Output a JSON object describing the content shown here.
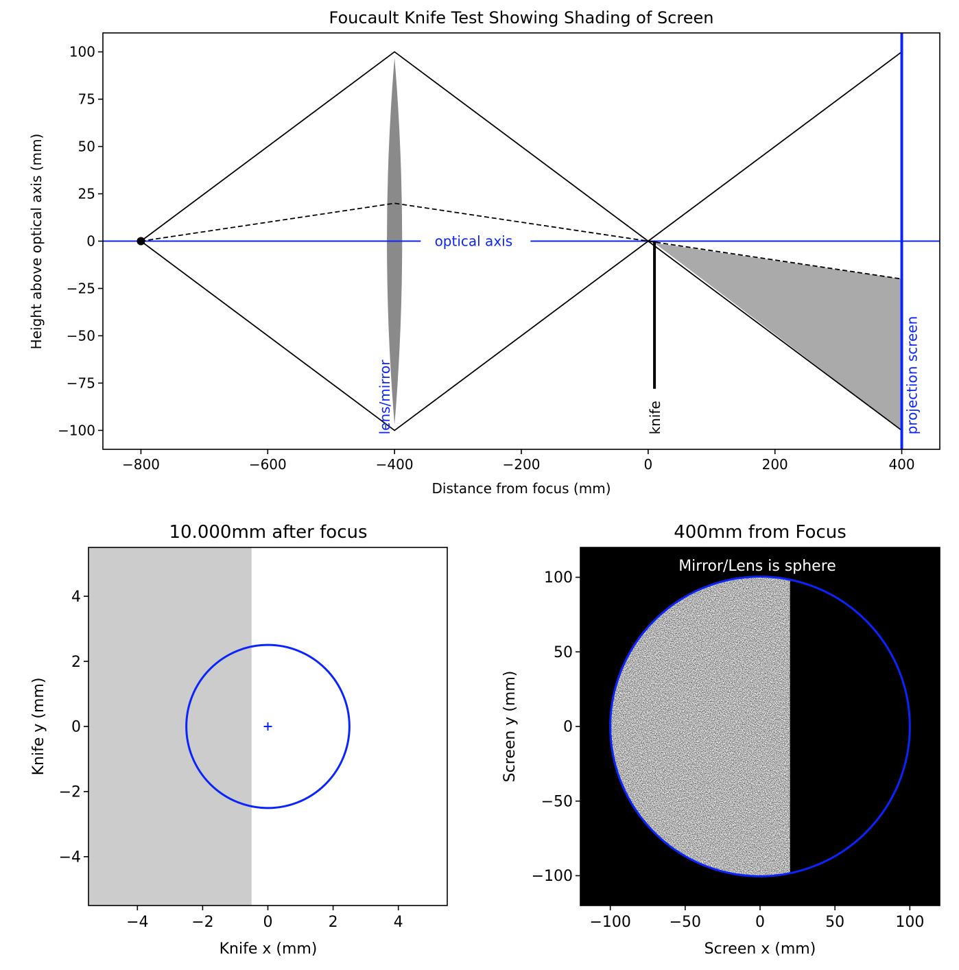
{
  "chart_data": [
    {
      "type": "line",
      "title": "Foucault Knife Test Showing Shading of Screen",
      "xlabel": "Distance from focus (mm)",
      "ylabel": "Height above optical axis (mm)",
      "xlim": [
        -860,
        460
      ],
      "ylim": [
        -110,
        110
      ],
      "xticks": [
        -800,
        -600,
        -400,
        -200,
        0,
        200,
        400
      ],
      "yticks": [
        -100,
        -75,
        -50,
        -25,
        0,
        25,
        50,
        75,
        100
      ],
      "grid": false,
      "series": [
        {
          "style": "solid-black",
          "points": [
            [
              -800,
              0
            ],
            [
              -400,
              100
            ],
            [
              0,
              0
            ],
            [
              400,
              100
            ]
          ]
        },
        {
          "style": "solid-black",
          "points": [
            [
              -800,
              0
            ],
            [
              -400,
              -100
            ],
            [
              0,
              0
            ],
            [
              400,
              -100
            ]
          ]
        },
        {
          "style": "dashed-black",
          "points": [
            [
              -800,
              0
            ],
            [
              -400,
              20
            ],
            [
              0,
              0
            ],
            [
              400,
              -20
            ]
          ]
        },
        {
          "style": "optical-axis",
          "points": [
            [
              -860,
              0
            ],
            [
              460,
              0
            ]
          ]
        }
      ],
      "source_point": [
        -800,
        0
      ],
      "lens": {
        "x": -400,
        "half_height": 97,
        "half_thickness": 12
      },
      "knife": {
        "x": 10,
        "y_top": 0,
        "y_bottom": -78
      },
      "shaded_region": [
        [
          10,
          -1
        ],
        [
          400,
          -20
        ],
        [
          400,
          -100
        ]
      ],
      "screen": {
        "x": 400
      },
      "annotations": [
        {
          "text": "optical axis",
          "x": -350,
          "y": 0
        },
        {
          "text": "lens/mirror",
          "x": -410,
          "y": -100,
          "rotation": -90
        },
        {
          "text": "knife",
          "x": 10,
          "y": -100,
          "rotation": -90
        },
        {
          "text": "projection screen",
          "x": 415,
          "y": -100,
          "rotation": -90
        }
      ],
      "colors": {
        "axis": "#0b24fb",
        "shade": "#aaaaaa",
        "lens": "#8a8a8a",
        "line": "#000000"
      }
    },
    {
      "type": "scatter",
      "title": "10.000mm after focus",
      "xlabel": "Knife x (mm)",
      "ylabel": "Knife y (mm)",
      "xlim": [
        -5.5,
        5.5
      ],
      "ylim": [
        -5.5,
        5.5
      ],
      "xticks": [
        -4,
        -2,
        0,
        2,
        4
      ],
      "yticks": [
        -4,
        -2,
        0,
        2,
        4
      ],
      "blur_circle": {
        "cx": 0,
        "cy": 0,
        "r": 2.5
      },
      "center_marker": [
        0,
        0
      ],
      "knife_edge_x": -0.5,
      "colors": {
        "knife_shade": "#cccccc",
        "circle": "#0b24fb"
      }
    },
    {
      "type": "scatter",
      "title": "400mm from Focus",
      "xlabel": "Screen x (mm)",
      "ylabel": "Screen y (mm)",
      "xlim": [
        -120,
        120
      ],
      "ylim": [
        -120,
        120
      ],
      "xticks": [
        -100,
        -50,
        0,
        50,
        100
      ],
      "yticks": [
        -100,
        -50,
        0,
        50,
        100
      ],
      "annotation": "Mirror/Lens is sphere",
      "pupil_circle": {
        "cx": 0,
        "cy": 0,
        "r": 100
      },
      "lit_region_x_max": 20,
      "colors": {
        "background": "#000000",
        "circle": "#0b24fb",
        "annotation": "#ffffff"
      }
    }
  ]
}
